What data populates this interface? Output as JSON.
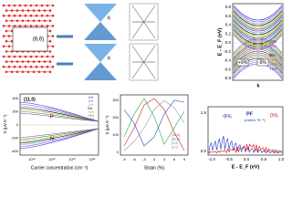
{
  "nanotube": {
    "label": "(6,6)"
  },
  "band_cones": {
    "labels": [
      "K",
      "K"
    ]
  },
  "band_structure": {
    "y_label": "E - E_F (eV)",
    "x_label": "k",
    "yticks": [
      "0.8",
      "0.6",
      "0.4",
      "0.2",
      "0.0",
      "-0.2",
      "-0.4",
      "-0.6",
      "-0.8"
    ],
    "legend": [
      "-9%",
      "-6%",
      "-3%",
      "0%",
      "+3%",
      "+6%",
      "+9%"
    ],
    "annotations": [
      "+9%",
      "-9%"
    ]
  },
  "seebeck_concentration": {
    "label": "(11,0)",
    "y_label": "S (μV K⁻¹)",
    "x_label": "Carrier concentration (cm⁻³)",
    "xticks": [
      "10¹⁸",
      "10¹⁹",
      "10²⁰",
      "10²¹"
    ],
    "yticks": [
      "400",
      "200",
      "0",
      "-200",
      "-400"
    ],
    "regions": [
      "P",
      "N"
    ],
    "legend": [
      "-9%",
      "-6%",
      "-3%",
      "0%",
      "+3%",
      "+6%",
      "+9%"
    ]
  },
  "seebeck_strain": {
    "y_label": "S (μV K⁻¹)",
    "x_label": "Strain (%)",
    "xticks": [
      "-9",
      "-6",
      "-3",
      "0",
      "3",
      "6",
      "9"
    ],
    "yticks": [
      "300",
      "200",
      "100",
      "0"
    ],
    "legend": [
      "(10,0)",
      "(11,0)",
      "(9,0)",
      "(8,0)"
    ]
  },
  "power_factor": {
    "label": "PF",
    "unit": "(mWm⁻¹K⁻²)",
    "annotations": [
      "-9%",
      "0%"
    ],
    "x_label": "E - E_F (eV)",
    "xticks": [
      "-1.0",
      "-0.5",
      "0.0",
      "0.5",
      "1.0"
    ],
    "yticks": [
      "1.5",
      "0.0"
    ]
  }
}
